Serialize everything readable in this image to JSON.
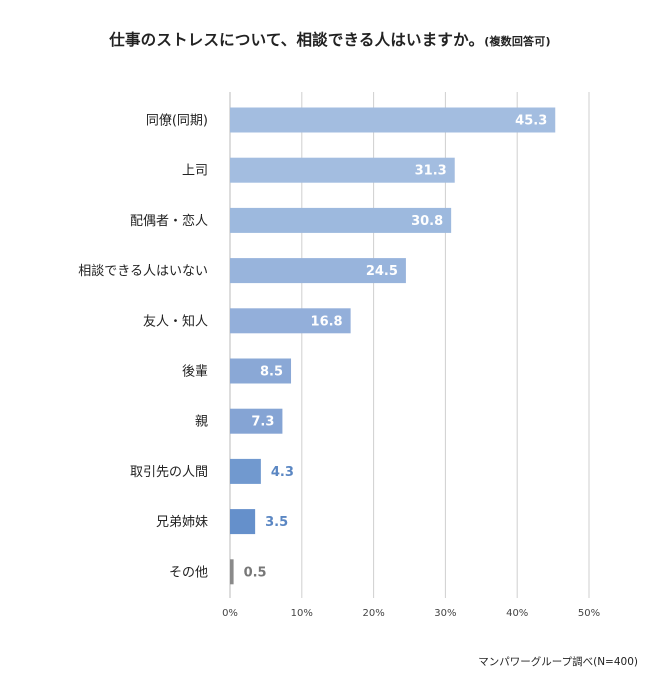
{
  "title": {
    "main": "仕事のストレスについて、相談できる人はいますか。",
    "sub": "(複数回答可)"
  },
  "source": "マンパワーグループ調べ(N=400)",
  "chart_data": {
    "type": "bar",
    "orientation": "horizontal",
    "categories": [
      "同僚(同期)",
      "上司",
      "配偶者・恋人",
      "相談できる人はいない",
      "友人・知人",
      "後輩",
      "親",
      "取引先の人間",
      "兄弟姉妹",
      "その他"
    ],
    "values": [
      45.3,
      31.3,
      30.8,
      24.5,
      16.8,
      8.5,
      7.3,
      4.3,
      3.5,
      0.5
    ],
    "value_labels": [
      "45.3",
      "31.3",
      "30.8",
      "24.5",
      "16.8",
      "8.5",
      "7.3",
      "4.3",
      "3.5",
      "0.5"
    ],
    "xlim": [
      0,
      50
    ],
    "x_ticks": [
      "0%",
      "10%",
      "20%",
      "30%",
      "40%",
      "50%"
    ],
    "x_tick_values": [
      0,
      10,
      20,
      30,
      40,
      50
    ],
    "grid": true,
    "colors": [
      "#a3bde0",
      "#a3bde0",
      "#9db9de",
      "#98b4dc",
      "#93afda",
      "#8aa8d6",
      "#85a4d4",
      "#7199cf",
      "#6590cb",
      "#8a8a8a"
    ],
    "label_colors": [
      "#ffffff",
      "#ffffff",
      "#ffffff",
      "#ffffff",
      "#ffffff",
      "#ffffff",
      "#ffffff",
      "#5b87c3",
      "#5b87c3",
      "#777777"
    ]
  }
}
